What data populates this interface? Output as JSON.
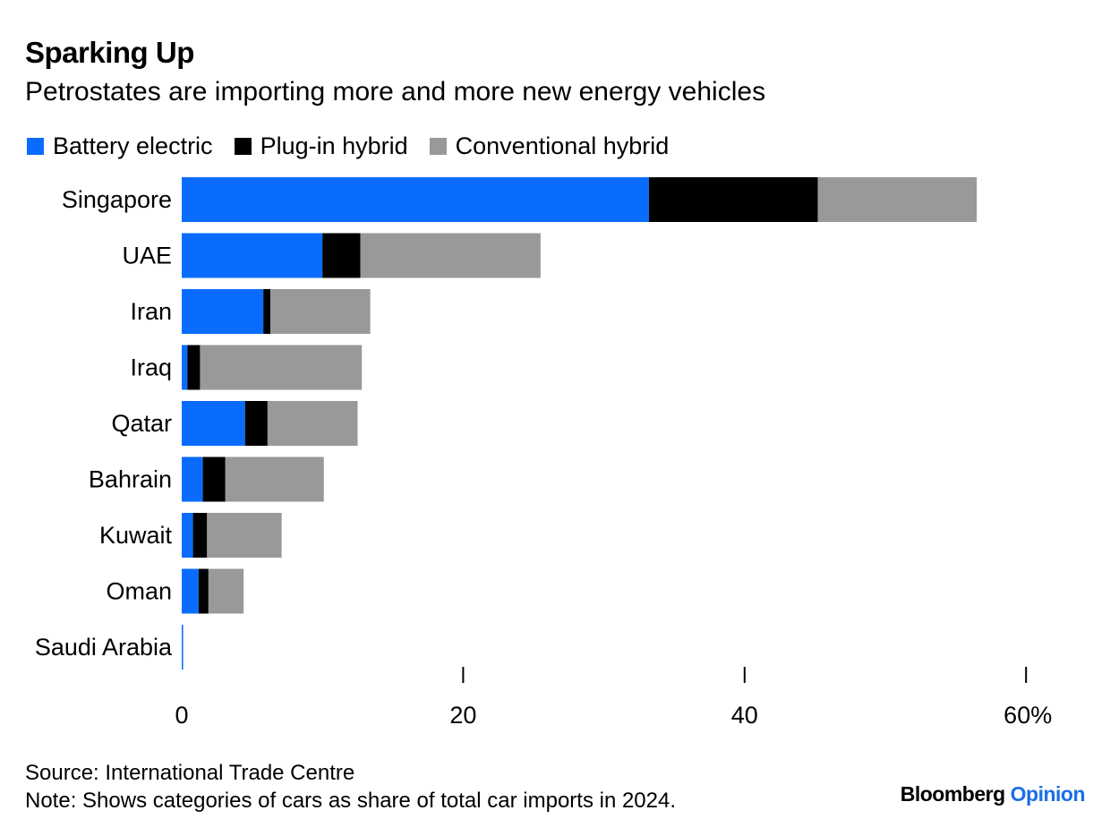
{
  "header": {
    "title": "Sparking Up",
    "subtitle": "Petrostates are importing more and more new energy vehicles"
  },
  "footer": {
    "source": "Source: International Trade Centre",
    "note": "Note: Shows categories of cars as share of total car imports in 2024."
  },
  "brand": {
    "name": "Bloomberg",
    "suffix": "Opinion"
  },
  "chart_data": {
    "type": "bar",
    "orientation": "horizontal",
    "stacked": true,
    "categories": [
      "Singapore",
      "UAE",
      "Iran",
      "Iraq",
      "Qatar",
      "Bahrain",
      "Kuwait",
      "Oman",
      "Saudi Arabia"
    ],
    "series": [
      {
        "name": "Battery electric",
        "color": "#0a6cff",
        "values": [
          33.2,
          10.0,
          5.8,
          0.4,
          4.5,
          1.5,
          0.8,
          1.2,
          0.1
        ]
      },
      {
        "name": "Plug-in hybrid",
        "color": "#000000",
        "values": [
          12.0,
          2.7,
          0.5,
          0.9,
          1.6,
          1.6,
          1.0,
          0.7,
          0.0
        ]
      },
      {
        "name": "Conventional hybrid",
        "color": "#999999",
        "values": [
          11.3,
          12.8,
          7.1,
          11.5,
          6.4,
          7.0,
          5.3,
          2.5,
          0.0
        ]
      }
    ],
    "xlim": [
      0,
      60
    ],
    "xticks": [
      0,
      20,
      40,
      60
    ],
    "xtick_labels": [
      "0",
      "20",
      "40",
      "60%"
    ],
    "legend": "top-left",
    "grid": false
  }
}
